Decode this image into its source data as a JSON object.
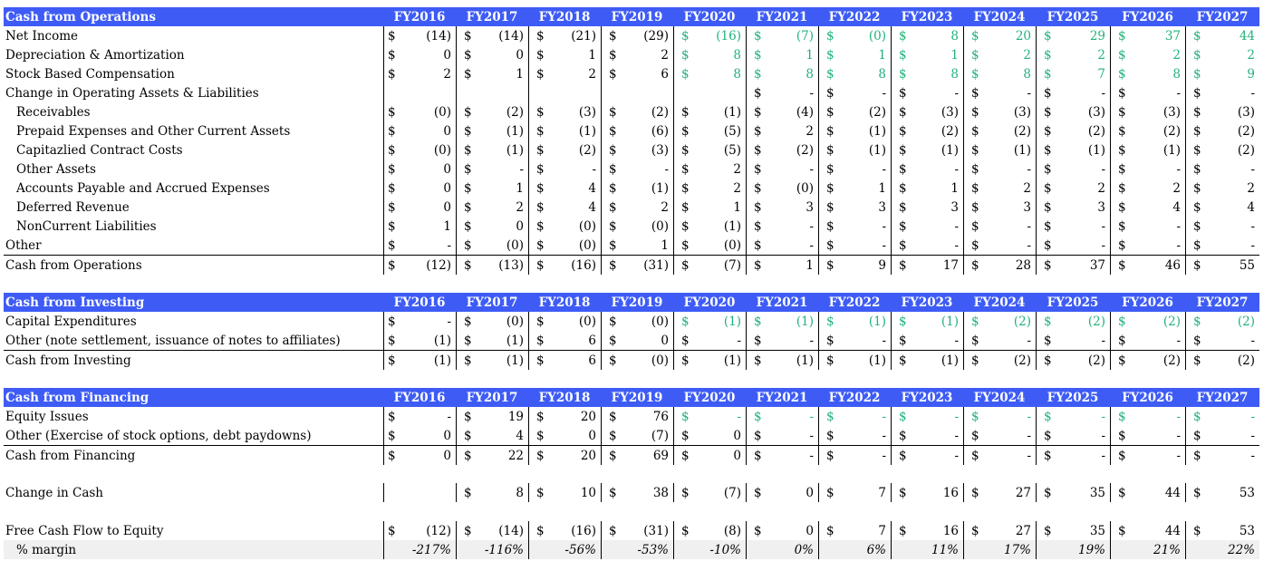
{
  "years": [
    "FY2016",
    "FY2017",
    "FY2018",
    "FY2019",
    "FY2020",
    "FY2021",
    "FY2022",
    "FY2023",
    "FY2024",
    "FY2025",
    "FY2026",
    "FY2027"
  ],
  "colors": {
    "header_bg": "#3e5cf5",
    "projection_green": "#21b27a",
    "margin_row_bg": "#f0f0f0"
  },
  "sections": [
    {
      "title": "Cash from Operations",
      "rows": [
        {
          "label": "Net Income",
          "indent": false,
          "dollar": [
            1,
            1,
            1,
            1,
            1,
            1,
            1,
            1,
            1,
            1,
            1,
            1
          ],
          "values": [
            "(14)",
            "(14)",
            "(21)",
            "(29)",
            "(16)",
            "(7)",
            "(0)",
            "8",
            "20",
            "29",
            "37",
            "44"
          ],
          "green": [
            0,
            0,
            0,
            0,
            1,
            1,
            1,
            1,
            1,
            1,
            1,
            1
          ]
        },
        {
          "label": "Depreciation & Amortization",
          "indent": false,
          "dollar": [
            1,
            1,
            1,
            1,
            1,
            1,
            1,
            1,
            1,
            1,
            1,
            1
          ],
          "values": [
            "0",
            "0",
            "1",
            "2",
            "8",
            "1",
            "1",
            "1",
            "2",
            "2",
            "2",
            "2"
          ],
          "green": [
            0,
            0,
            0,
            0,
            1,
            1,
            1,
            1,
            1,
            1,
            1,
            1
          ]
        },
        {
          "label": "Stock Based Compensation",
          "indent": false,
          "dollar": [
            1,
            1,
            1,
            1,
            1,
            1,
            1,
            1,
            1,
            1,
            1,
            1
          ],
          "values": [
            "2",
            "1",
            "2",
            "6",
            "8",
            "8",
            "8",
            "8",
            "8",
            "7",
            "8",
            "9"
          ],
          "green": [
            0,
            0,
            0,
            0,
            1,
            1,
            1,
            1,
            1,
            1,
            1,
            1
          ]
        },
        {
          "label": "Change in Operating Assets & Liabilities",
          "indent": false,
          "dollar": [
            0,
            0,
            0,
            0,
            0,
            1,
            1,
            1,
            1,
            1,
            1,
            1
          ],
          "values": [
            "",
            "",
            "",
            "",
            "",
            "-",
            "-",
            "-",
            "-",
            "-",
            "-",
            "-"
          ],
          "green": [
            0,
            0,
            0,
            0,
            0,
            0,
            0,
            0,
            0,
            0,
            0,
            0
          ]
        },
        {
          "label": "Receivables",
          "indent": true,
          "dollar": [
            1,
            1,
            1,
            1,
            1,
            1,
            1,
            1,
            1,
            1,
            1,
            1
          ],
          "values": [
            "(0)",
            "(2)",
            "(3)",
            "(2)",
            "(1)",
            "(4)",
            "(2)",
            "(3)",
            "(3)",
            "(3)",
            "(3)",
            "(3)"
          ],
          "green": [
            0,
            0,
            0,
            0,
            0,
            0,
            0,
            0,
            0,
            0,
            0,
            0
          ]
        },
        {
          "label": "Prepaid Expenses and Other Current Assets",
          "indent": true,
          "dollar": [
            1,
            1,
            1,
            1,
            1,
            1,
            1,
            1,
            1,
            1,
            1,
            1
          ],
          "values": [
            "0",
            "(1)",
            "(1)",
            "(6)",
            "(5)",
            "2",
            "(1)",
            "(2)",
            "(2)",
            "(2)",
            "(2)",
            "(2)"
          ],
          "green": [
            0,
            0,
            0,
            0,
            0,
            0,
            0,
            0,
            0,
            0,
            0,
            0
          ]
        },
        {
          "label": "Capitazlied Contract Costs",
          "indent": true,
          "dollar": [
            1,
            1,
            1,
            1,
            1,
            1,
            1,
            1,
            1,
            1,
            1,
            1
          ],
          "values": [
            "(0)",
            "(1)",
            "(2)",
            "(3)",
            "(5)",
            "(2)",
            "(1)",
            "(1)",
            "(1)",
            "(1)",
            "(1)",
            "(2)"
          ],
          "green": [
            0,
            0,
            0,
            0,
            0,
            0,
            0,
            0,
            0,
            0,
            0,
            0
          ]
        },
        {
          "label": "Other Assets",
          "indent": true,
          "dollar": [
            1,
            1,
            1,
            1,
            1,
            1,
            1,
            1,
            1,
            1,
            1,
            1
          ],
          "values": [
            "0",
            "-",
            "-",
            "-",
            "2",
            "-",
            "-",
            "-",
            "-",
            "-",
            "-",
            "-"
          ],
          "green": [
            0,
            0,
            0,
            0,
            0,
            0,
            0,
            0,
            0,
            0,
            0,
            0
          ]
        },
        {
          "label": "Accounts Payable and Accrued Expenses",
          "indent": true,
          "dollar": [
            1,
            1,
            1,
            1,
            1,
            1,
            1,
            1,
            1,
            1,
            1,
            1
          ],
          "values": [
            "0",
            "1",
            "4",
            "(1)",
            "2",
            "(0)",
            "1",
            "1",
            "2",
            "2",
            "2",
            "2"
          ],
          "green": [
            0,
            0,
            0,
            0,
            0,
            0,
            0,
            0,
            0,
            0,
            0,
            0
          ]
        },
        {
          "label": "Deferred Revenue",
          "indent": true,
          "dollar": [
            1,
            1,
            1,
            1,
            1,
            1,
            1,
            1,
            1,
            1,
            1,
            1
          ],
          "values": [
            "0",
            "2",
            "4",
            "2",
            "1",
            "3",
            "3",
            "3",
            "3",
            "3",
            "4",
            "4"
          ],
          "green": [
            0,
            0,
            0,
            0,
            0,
            0,
            0,
            0,
            0,
            0,
            0,
            0
          ]
        },
        {
          "label": "NonCurrent Liabilities",
          "indent": true,
          "dollar": [
            1,
            1,
            1,
            1,
            1,
            1,
            1,
            1,
            1,
            1,
            1,
            1
          ],
          "values": [
            "1",
            "0",
            "(0)",
            "(0)",
            "(1)",
            "-",
            "-",
            "-",
            "-",
            "-",
            "-",
            "-"
          ],
          "green": [
            0,
            0,
            0,
            0,
            0,
            0,
            0,
            0,
            0,
            0,
            0,
            0
          ]
        },
        {
          "label": "Other",
          "indent": false,
          "dollar": [
            1,
            1,
            1,
            1,
            1,
            1,
            1,
            1,
            1,
            1,
            1,
            1
          ],
          "values": [
            "-",
            "(0)",
            "(0)",
            "1",
            "(0)",
            "-",
            "-",
            "-",
            "-",
            "-",
            "-",
            "-"
          ],
          "green": [
            0,
            0,
            0,
            0,
            0,
            0,
            0,
            0,
            0,
            0,
            0,
            0
          ]
        },
        {
          "label": "Cash from Operations",
          "indent": false,
          "total": true,
          "dollar": [
            1,
            1,
            1,
            1,
            1,
            1,
            1,
            1,
            1,
            1,
            1,
            1
          ],
          "values": [
            "(12)",
            "(13)",
            "(16)",
            "(31)",
            "(7)",
            "1",
            "9",
            "17",
            "28",
            "37",
            "46",
            "55"
          ],
          "green": [
            0,
            0,
            0,
            0,
            0,
            0,
            0,
            0,
            0,
            0,
            0,
            0
          ]
        }
      ]
    },
    {
      "title": "Cash from Investing",
      "rows": [
        {
          "label": "Capital Expenditures",
          "indent": false,
          "dollar": [
            1,
            1,
            1,
            1,
            1,
            1,
            1,
            1,
            1,
            1,
            1,
            1
          ],
          "values": [
            "-",
            "(0)",
            "(0)",
            "(0)",
            "(1)",
            "(1)",
            "(1)",
            "(1)",
            "(2)",
            "(2)",
            "(2)",
            "(2)"
          ],
          "green": [
            0,
            0,
            0,
            0,
            1,
            1,
            1,
            1,
            1,
            1,
            1,
            1
          ]
        },
        {
          "label": "Other (note settlement, issuance of notes to affiliates)",
          "indent": false,
          "dollar": [
            1,
            1,
            1,
            1,
            1,
            1,
            1,
            1,
            1,
            1,
            1,
            1
          ],
          "values": [
            "(1)",
            "(1)",
            "6",
            "0",
            "-",
            "-",
            "-",
            "-",
            "-",
            "-",
            "-",
            "-"
          ],
          "green": [
            0,
            0,
            0,
            0,
            0,
            0,
            0,
            0,
            0,
            0,
            0,
            0
          ]
        },
        {
          "label": "Cash from Investing",
          "indent": false,
          "total": true,
          "dollar": [
            1,
            1,
            1,
            1,
            1,
            1,
            1,
            1,
            1,
            1,
            1,
            1
          ],
          "values": [
            "(1)",
            "(1)",
            "6",
            "(0)",
            "(1)",
            "(1)",
            "(1)",
            "(1)",
            "(2)",
            "(2)",
            "(2)",
            "(2)"
          ],
          "green": [
            0,
            0,
            0,
            0,
            0,
            0,
            0,
            0,
            0,
            0,
            0,
            0
          ]
        }
      ]
    },
    {
      "title": "Cash from Financing",
      "rows": [
        {
          "label": "Equity Issues",
          "indent": false,
          "dollar": [
            1,
            1,
            1,
            1,
            1,
            1,
            1,
            1,
            1,
            1,
            1,
            1
          ],
          "values": [
            "-",
            "19",
            "20",
            "76",
            "-",
            "-",
            "-",
            "-",
            "-",
            "-",
            "-",
            "-"
          ],
          "green": [
            0,
            0,
            0,
            0,
            1,
            1,
            1,
            1,
            1,
            1,
            1,
            1
          ]
        },
        {
          "label": "Other (Exercise of stock options, debt paydowns)",
          "indent": false,
          "dollar": [
            1,
            1,
            1,
            1,
            1,
            1,
            1,
            1,
            1,
            1,
            1,
            1
          ],
          "values": [
            "0",
            "4",
            "0",
            "(7)",
            "0",
            "-",
            "-",
            "-",
            "-",
            "-",
            "-",
            "-"
          ],
          "green": [
            0,
            0,
            0,
            0,
            0,
            0,
            0,
            0,
            0,
            0,
            0,
            0
          ]
        },
        {
          "label": "Cash from Financing",
          "indent": false,
          "total": true,
          "dollar": [
            1,
            1,
            1,
            1,
            1,
            1,
            1,
            1,
            1,
            1,
            1,
            1
          ],
          "values": [
            "0",
            "22",
            "20",
            "69",
            "0",
            "-",
            "-",
            "-",
            "-",
            "-",
            "-",
            "-"
          ],
          "green": [
            0,
            0,
            0,
            0,
            0,
            0,
            0,
            0,
            0,
            0,
            0,
            0
          ]
        }
      ]
    }
  ],
  "change_in_cash": {
    "label": "Change in Cash",
    "dollar": [
      0,
      1,
      1,
      1,
      1,
      1,
      1,
      1,
      1,
      1,
      1,
      1
    ],
    "values": [
      "",
      "8",
      "10",
      "38",
      "(7)",
      "0",
      "7",
      "16",
      "27",
      "35",
      "44",
      "53"
    ]
  },
  "fcfe": {
    "label": "Free Cash Flow to Equity",
    "dollar": [
      1,
      1,
      1,
      1,
      1,
      1,
      1,
      1,
      1,
      1,
      1,
      1
    ],
    "values": [
      "(12)",
      "(14)",
      "(16)",
      "(31)",
      "(8)",
      "0",
      "7",
      "16",
      "27",
      "35",
      "44",
      "53"
    ]
  },
  "margin": {
    "label": "% margin",
    "values": [
      "-217%",
      "-116%",
      "-56%",
      "-53%",
      "-10%",
      "0%",
      "6%",
      "11%",
      "17%",
      "19%",
      "21%",
      "22%"
    ]
  }
}
